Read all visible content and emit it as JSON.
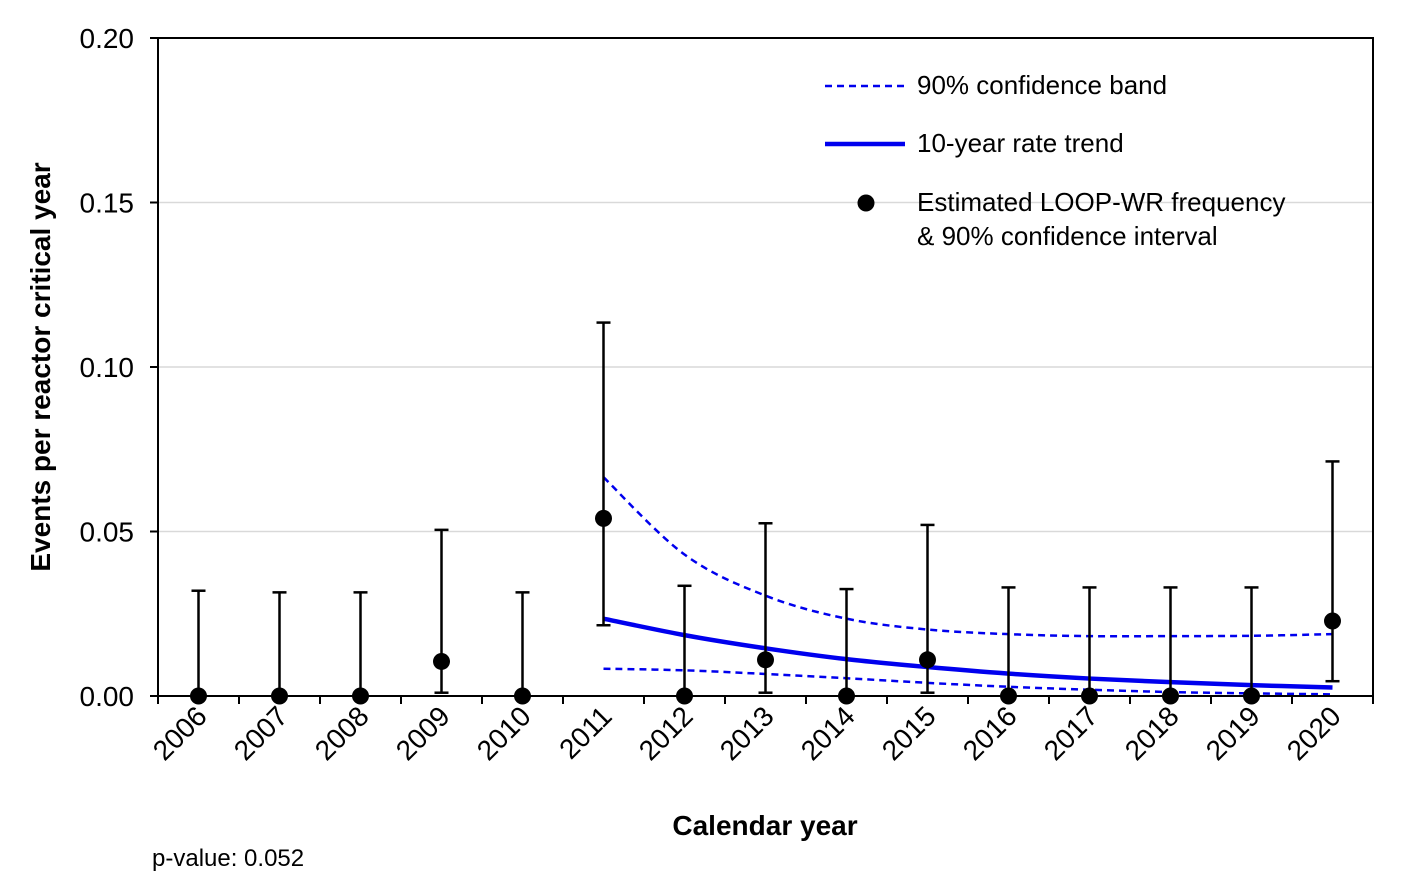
{
  "chart_data": {
    "type": "scatter",
    "xlabel": "Calendar year",
    "ylabel": "Events per reactor critical year",
    "categories": [
      "2006",
      "2007",
      "2008",
      "2009",
      "2010",
      "2011",
      "2012",
      "2013",
      "2014",
      "2015",
      "2016",
      "2017",
      "2018",
      "2019",
      "2020"
    ],
    "ylim": [
      0,
      0.2
    ],
    "yticks": [
      "0.00",
      "0.05",
      "0.10",
      "0.15",
      "0.20"
    ],
    "grid": true,
    "legend_position": "top-right",
    "series": [
      {
        "name": "Estimated LOOP-WR frequency & 90% confidence interval",
        "kind": "points-with-error-bars",
        "color": "#000000",
        "values": [
          0.0,
          0.0,
          0.0,
          0.0105,
          0.0,
          0.054,
          0.0,
          0.011,
          0.0,
          0.011,
          0.0,
          0.0,
          0.0,
          0.0,
          0.0228
        ],
        "lower": [
          0.0,
          0.0,
          0.0,
          0.001,
          0.0,
          0.0215,
          0.0,
          0.001,
          0.0,
          0.001,
          0.0,
          0.0,
          0.0,
          0.0,
          0.0045
        ],
        "upper": [
          0.032,
          0.0315,
          0.0315,
          0.0505,
          0.0315,
          0.1135,
          0.0335,
          0.0525,
          0.0325,
          0.052,
          0.033,
          0.033,
          0.033,
          0.033,
          0.0713
        ]
      },
      {
        "name": "10-year rate trend",
        "kind": "line",
        "color": "#0000ee",
        "x": [
          "2011",
          "2012",
          "2013",
          "2014",
          "2015",
          "2016",
          "2017",
          "2018",
          "2019",
          "2020"
        ],
        "values": [
          0.0235,
          0.0185,
          0.0145,
          0.0112,
          0.0088,
          0.0068,
          0.0053,
          0.0042,
          0.0033,
          0.0026
        ]
      },
      {
        "name": "90% confidence band",
        "kind": "dashed-band",
        "color": "#0000ee",
        "x": [
          "2011",
          "2012",
          "2013",
          "2014",
          "2015",
          "2016",
          "2017",
          "2018",
          "2019",
          "2020"
        ],
        "upper": [
          0.0665,
          0.043,
          0.0305,
          0.0235,
          0.0202,
          0.0188,
          0.0182,
          0.0182,
          0.0183,
          0.0188
        ],
        "lower": [
          0.0083,
          0.0078,
          0.0067,
          0.0054,
          0.004,
          0.0028,
          0.0019,
          0.0012,
          0.0008,
          0.0005
        ]
      }
    ],
    "legend": {
      "band_label": "90% confidence band",
      "trend_label": "10-year rate trend",
      "points_label_line1": "Estimated LOOP-WR frequency",
      "points_label_line2": "& 90% confidence interval"
    },
    "annotation": "p-value: 0.052"
  }
}
